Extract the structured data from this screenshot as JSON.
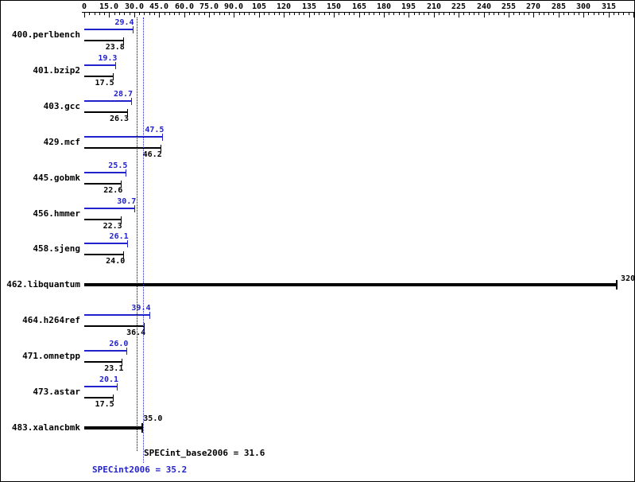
{
  "colors": {
    "peak_blue": "#2222cc",
    "bar_black": "#000000",
    "background": "#ffffff",
    "border": "#000000"
  },
  "chart_data": {
    "type": "bar",
    "orientation": "horizontal",
    "grid": false,
    "legend_position": "none",
    "axis": {
      "min": 0,
      "max": 330,
      "major_step": 15,
      "minor_step": 3,
      "major_labels": [
        "0",
        "15.0",
        "30.0",
        "45.0",
        "60.0",
        "75.0",
        "90.0",
        "105",
        "120",
        "135",
        "150",
        "165",
        "180",
        "195",
        "210",
        "225",
        "240",
        "255",
        "270",
        "285",
        "300",
        "315"
      ]
    },
    "benchmarks": [
      {
        "name": "400.perlbench",
        "peak": {
          "value": 29.4,
          "label": "29.4"
        },
        "base": {
          "value": 23.8,
          "label": "23.8"
        }
      },
      {
        "name": "401.bzip2",
        "peak": {
          "value": 19.3,
          "label": "19.3"
        },
        "base": {
          "value": 17.5,
          "label": "17.5"
        }
      },
      {
        "name": "403.gcc",
        "peak": {
          "value": 28.7,
          "label": "28.7"
        },
        "base": {
          "value": 26.3,
          "label": "26.3"
        }
      },
      {
        "name": "429.mcf",
        "peak": {
          "value": 47.5,
          "label": "47.5"
        },
        "base": {
          "value": 46.2,
          "label": "46.2"
        }
      },
      {
        "name": "445.gobmk",
        "peak": {
          "value": 25.5,
          "label": "25.5"
        },
        "base": {
          "value": 22.6,
          "label": "22.6"
        }
      },
      {
        "name": "456.hmmer",
        "peak": {
          "value": 30.7,
          "label": "30.7"
        },
        "base": {
          "value": 22.3,
          "label": "22.3"
        }
      },
      {
        "name": "458.sjeng",
        "peak": {
          "value": 26.1,
          "label": "26.1"
        },
        "base": {
          "value": 24.0,
          "label": "24.0"
        }
      },
      {
        "name": "462.libquantum",
        "single": {
          "value": 320,
          "label": "320",
          "label_pos": "right"
        }
      },
      {
        "name": "464.h264ref",
        "peak": {
          "value": 39.4,
          "label": "39.4"
        },
        "base": {
          "value": 36.4,
          "label": "36.4"
        }
      },
      {
        "name": "471.omnetpp",
        "peak": {
          "value": 26.0,
          "label": "26.0"
        },
        "base": {
          "value": 23.1,
          "label": "23.1"
        }
      },
      {
        "name": "473.astar",
        "peak": {
          "value": 20.1,
          "label": "20.1"
        },
        "base": {
          "value": 17.5,
          "label": "17.5"
        }
      },
      {
        "name": "483.xalancbmk",
        "single": {
          "value": 35.0,
          "label": "35.0",
          "label_pos": "above"
        }
      }
    ],
    "means": {
      "base": {
        "value": 31.6,
        "label": "SPECint_base2006 = 31.6"
      },
      "peak": {
        "value": 35.2,
        "label": "SPECint2006 = 35.2"
      }
    }
  }
}
